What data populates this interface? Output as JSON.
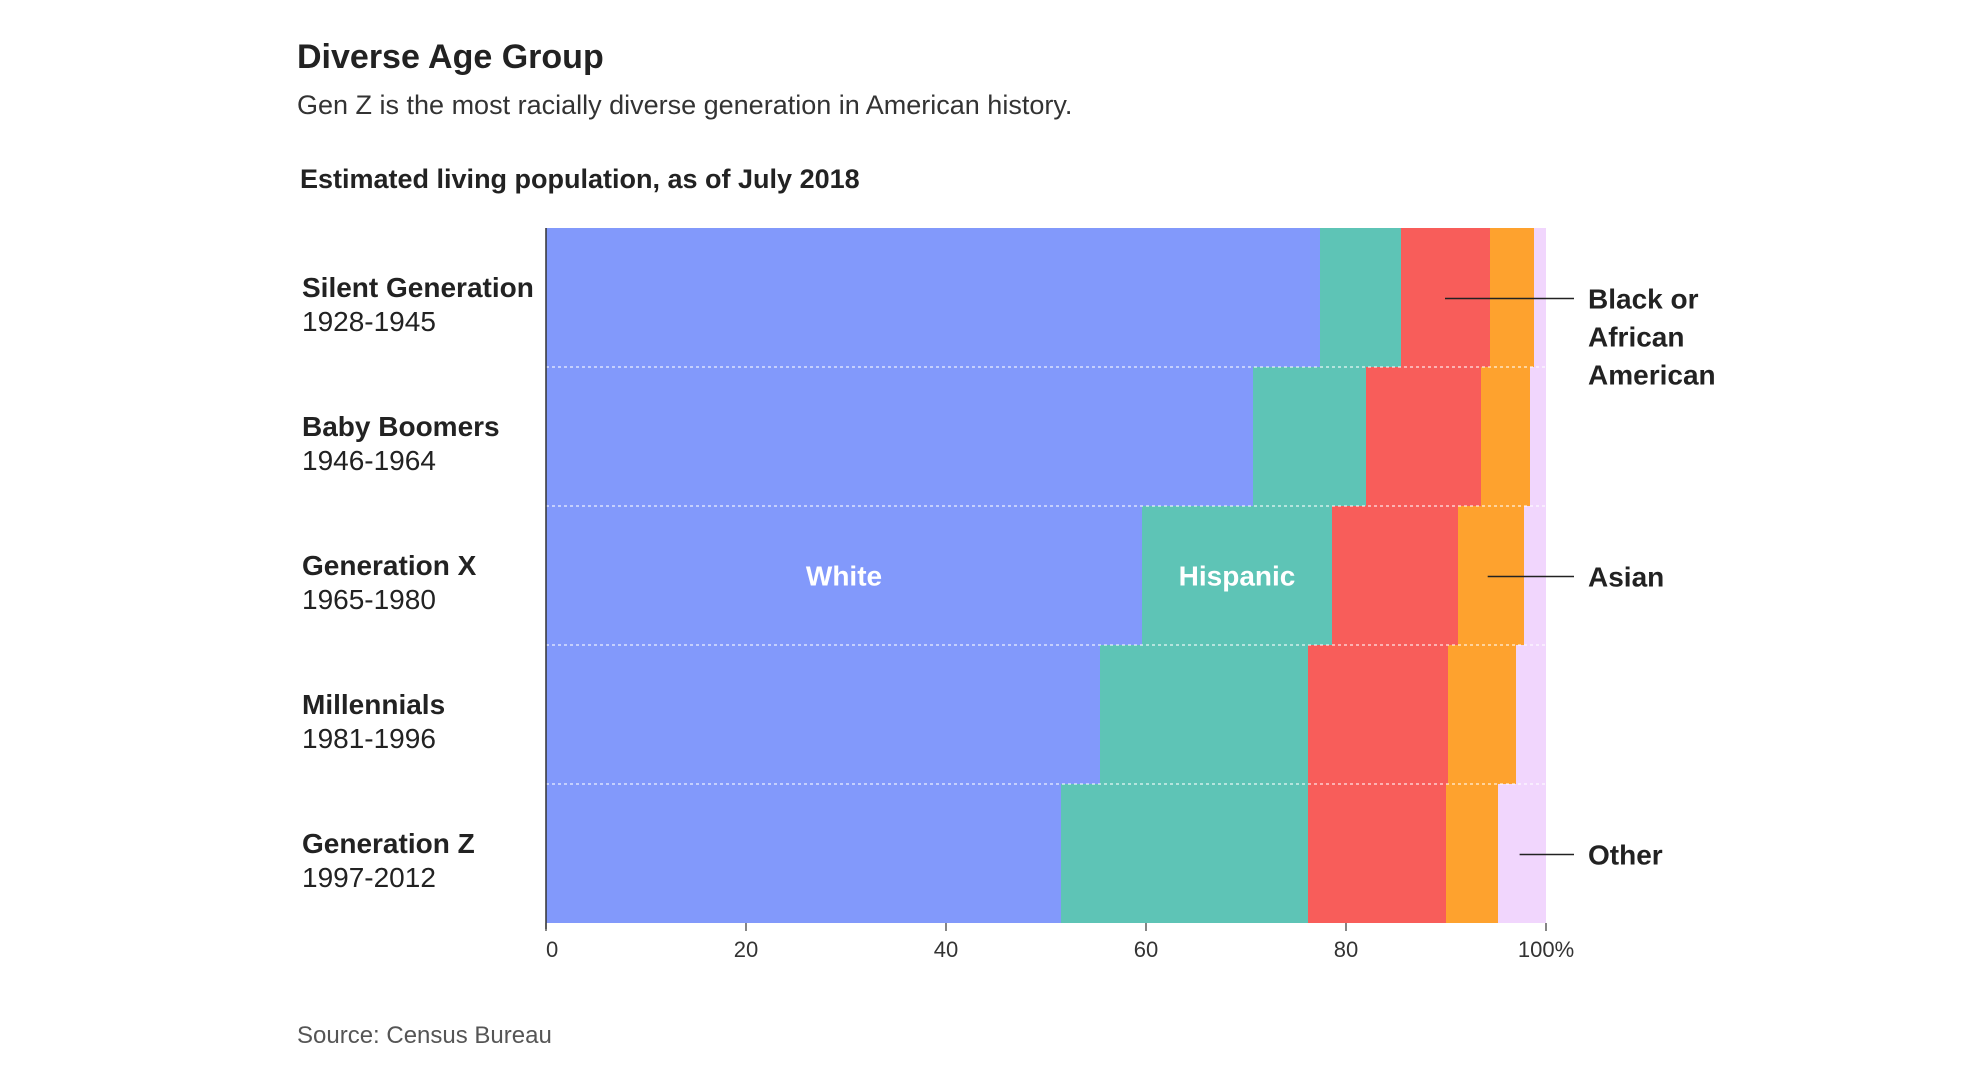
{
  "header": {
    "title": "Diverse Age Group",
    "subtitle": "Gen Z is the most racially diverse generation in American history.",
    "chart_label": "Estimated living population, as of July 2018"
  },
  "footer": {
    "source": "Source: Census Bureau"
  },
  "colors": {
    "White": "#8299fb",
    "Hispanic": "#5ec4b6",
    "Black or African American": "#f85d5a",
    "Asian": "#fea22e",
    "Other": "#f1d6fd"
  },
  "chart_data": {
    "type": "bar",
    "orientation": "horizontal",
    "stacked": true,
    "title": "Diverse Age Group",
    "subtitle": "Gen Z is the most racially diverse generation in American history.",
    "xlim": [
      0,
      100
    ],
    "x_ticks": [
      "0",
      "20",
      "40",
      "60",
      "80",
      "100%"
    ],
    "categories": [
      {
        "name": "Silent Generation",
        "years": "1928-1945"
      },
      {
        "name": "Baby Boomers",
        "years": "1946-1964"
      },
      {
        "name": "Generation X",
        "years": "1965-1980"
      },
      {
        "name": "Millennials",
        "years": "1981-1996"
      },
      {
        "name": "Generation Z",
        "years": "1997-2012"
      }
    ],
    "series": [
      {
        "name": "White",
        "values": [
          77.4,
          70.7,
          59.6,
          55.4,
          51.5
        ]
      },
      {
        "name": "Hispanic",
        "values": [
          8.1,
          11.3,
          19.0,
          20.8,
          24.7
        ]
      },
      {
        "name": "Black or African American",
        "values": [
          8.9,
          11.5,
          12.6,
          14.0,
          13.8
        ]
      },
      {
        "name": "Asian",
        "values": [
          4.4,
          4.9,
          6.6,
          6.8,
          5.2
        ]
      },
      {
        "name": "Other",
        "values": [
          1.2,
          1.6,
          2.2,
          3.0,
          4.8
        ]
      }
    ],
    "grid": false,
    "legend": "direct-labels-right"
  }
}
